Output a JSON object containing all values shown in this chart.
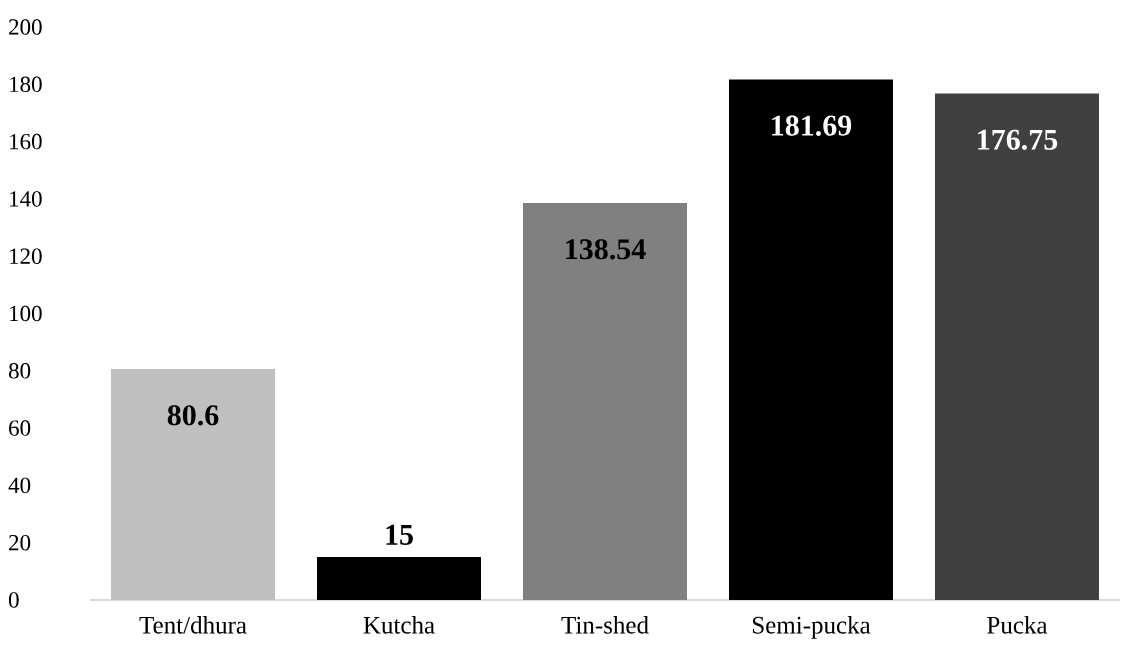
{
  "chart_data": {
    "type": "bar",
    "categories": [
      "Tent/dhura",
      "Kutcha",
      "Tin-shed",
      "Semi-pucka",
      "Pucka"
    ],
    "values": [
      80.6,
      15,
      138.54,
      181.69,
      176.75
    ],
    "colors": [
      "#bfbfbf",
      "#000000",
      "#808080",
      "#000000",
      "#404040"
    ],
    "ylim": [
      0,
      200
    ],
    "yticks": [
      0,
      20,
      40,
      60,
      80,
      100,
      120,
      140,
      160,
      180,
      200
    ],
    "grid": false,
    "data_labels": true
  }
}
